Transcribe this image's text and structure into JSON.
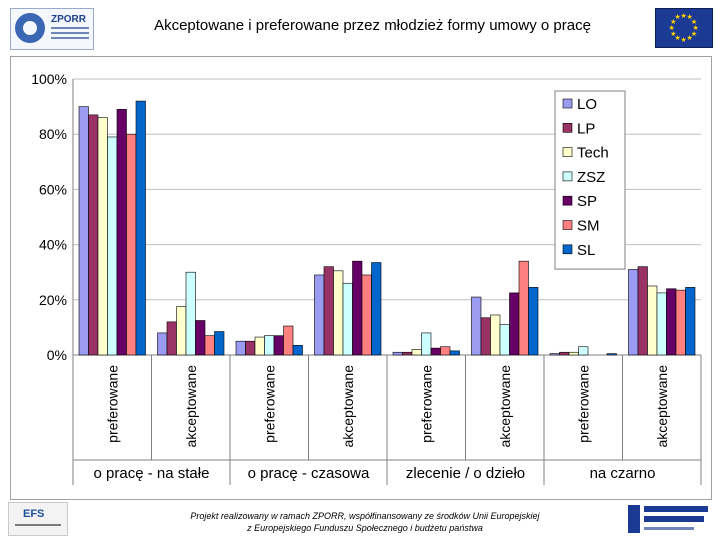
{
  "header": {
    "title": "Akceptowane i preferowane przez młodzież formy umowy o pracę"
  },
  "footer": {
    "line1": "Projekt realizowany w ramach ZPORR, współfinansowany ze środków Unii Europejskiej",
    "line2": "z Europejskiego Funduszu Społecznego i budżetu państwa"
  },
  "logos": {
    "left": "zporr-logo",
    "right": "eu-flag",
    "bottom_left": "efs-logo",
    "bottom_right": "european-social-fund-logo"
  },
  "chart_data": {
    "type": "bar",
    "title": "",
    "ylim": [
      0,
      100
    ],
    "y_ticks": [
      "0%",
      "20%",
      "40%",
      "60%",
      "80%",
      "100%"
    ],
    "groups": [
      "o pracę - na stałe",
      "o pracę - czasowa",
      "zlecenie / o dzieło",
      "na czarno"
    ],
    "categories": [
      "preferowane",
      "akceptowane",
      "preferowane",
      "akceptowane",
      "preferowane",
      "akceptowane",
      "preferowane",
      "akceptowane"
    ],
    "legend_position": "top-right",
    "grid": true,
    "series": [
      {
        "name": "LO",
        "color": "#9b9bf1",
        "values": [
          90,
          8,
          5,
          29,
          1,
          21,
          0.5,
          31
        ]
      },
      {
        "name": "LP",
        "color": "#993366",
        "values": [
          87,
          12,
          5,
          32,
          1,
          13.5,
          1,
          32
        ]
      },
      {
        "name": "Tech",
        "color": "#ffffcc",
        "values": [
          86,
          17.5,
          6.5,
          30.5,
          2,
          14.5,
          1,
          25
        ]
      },
      {
        "name": "ZSZ",
        "color": "#ccffff",
        "values": [
          79,
          30,
          7,
          26,
          8,
          11,
          3,
          22.5
        ]
      },
      {
        "name": "SP",
        "color": "#660066",
        "values": [
          89,
          12.5,
          7,
          34,
          2.5,
          22.5,
          0,
          24
        ]
      },
      {
        "name": "SM",
        "color": "#ff8080",
        "values": [
          80,
          7,
          10.5,
          29,
          3,
          34,
          0,
          23.5
        ]
      },
      {
        "name": "SL",
        "color": "#0066cc",
        "values": [
          92,
          8.5,
          3.5,
          33.5,
          1.5,
          24.5,
          0.5,
          24.5
        ]
      }
    ]
  }
}
